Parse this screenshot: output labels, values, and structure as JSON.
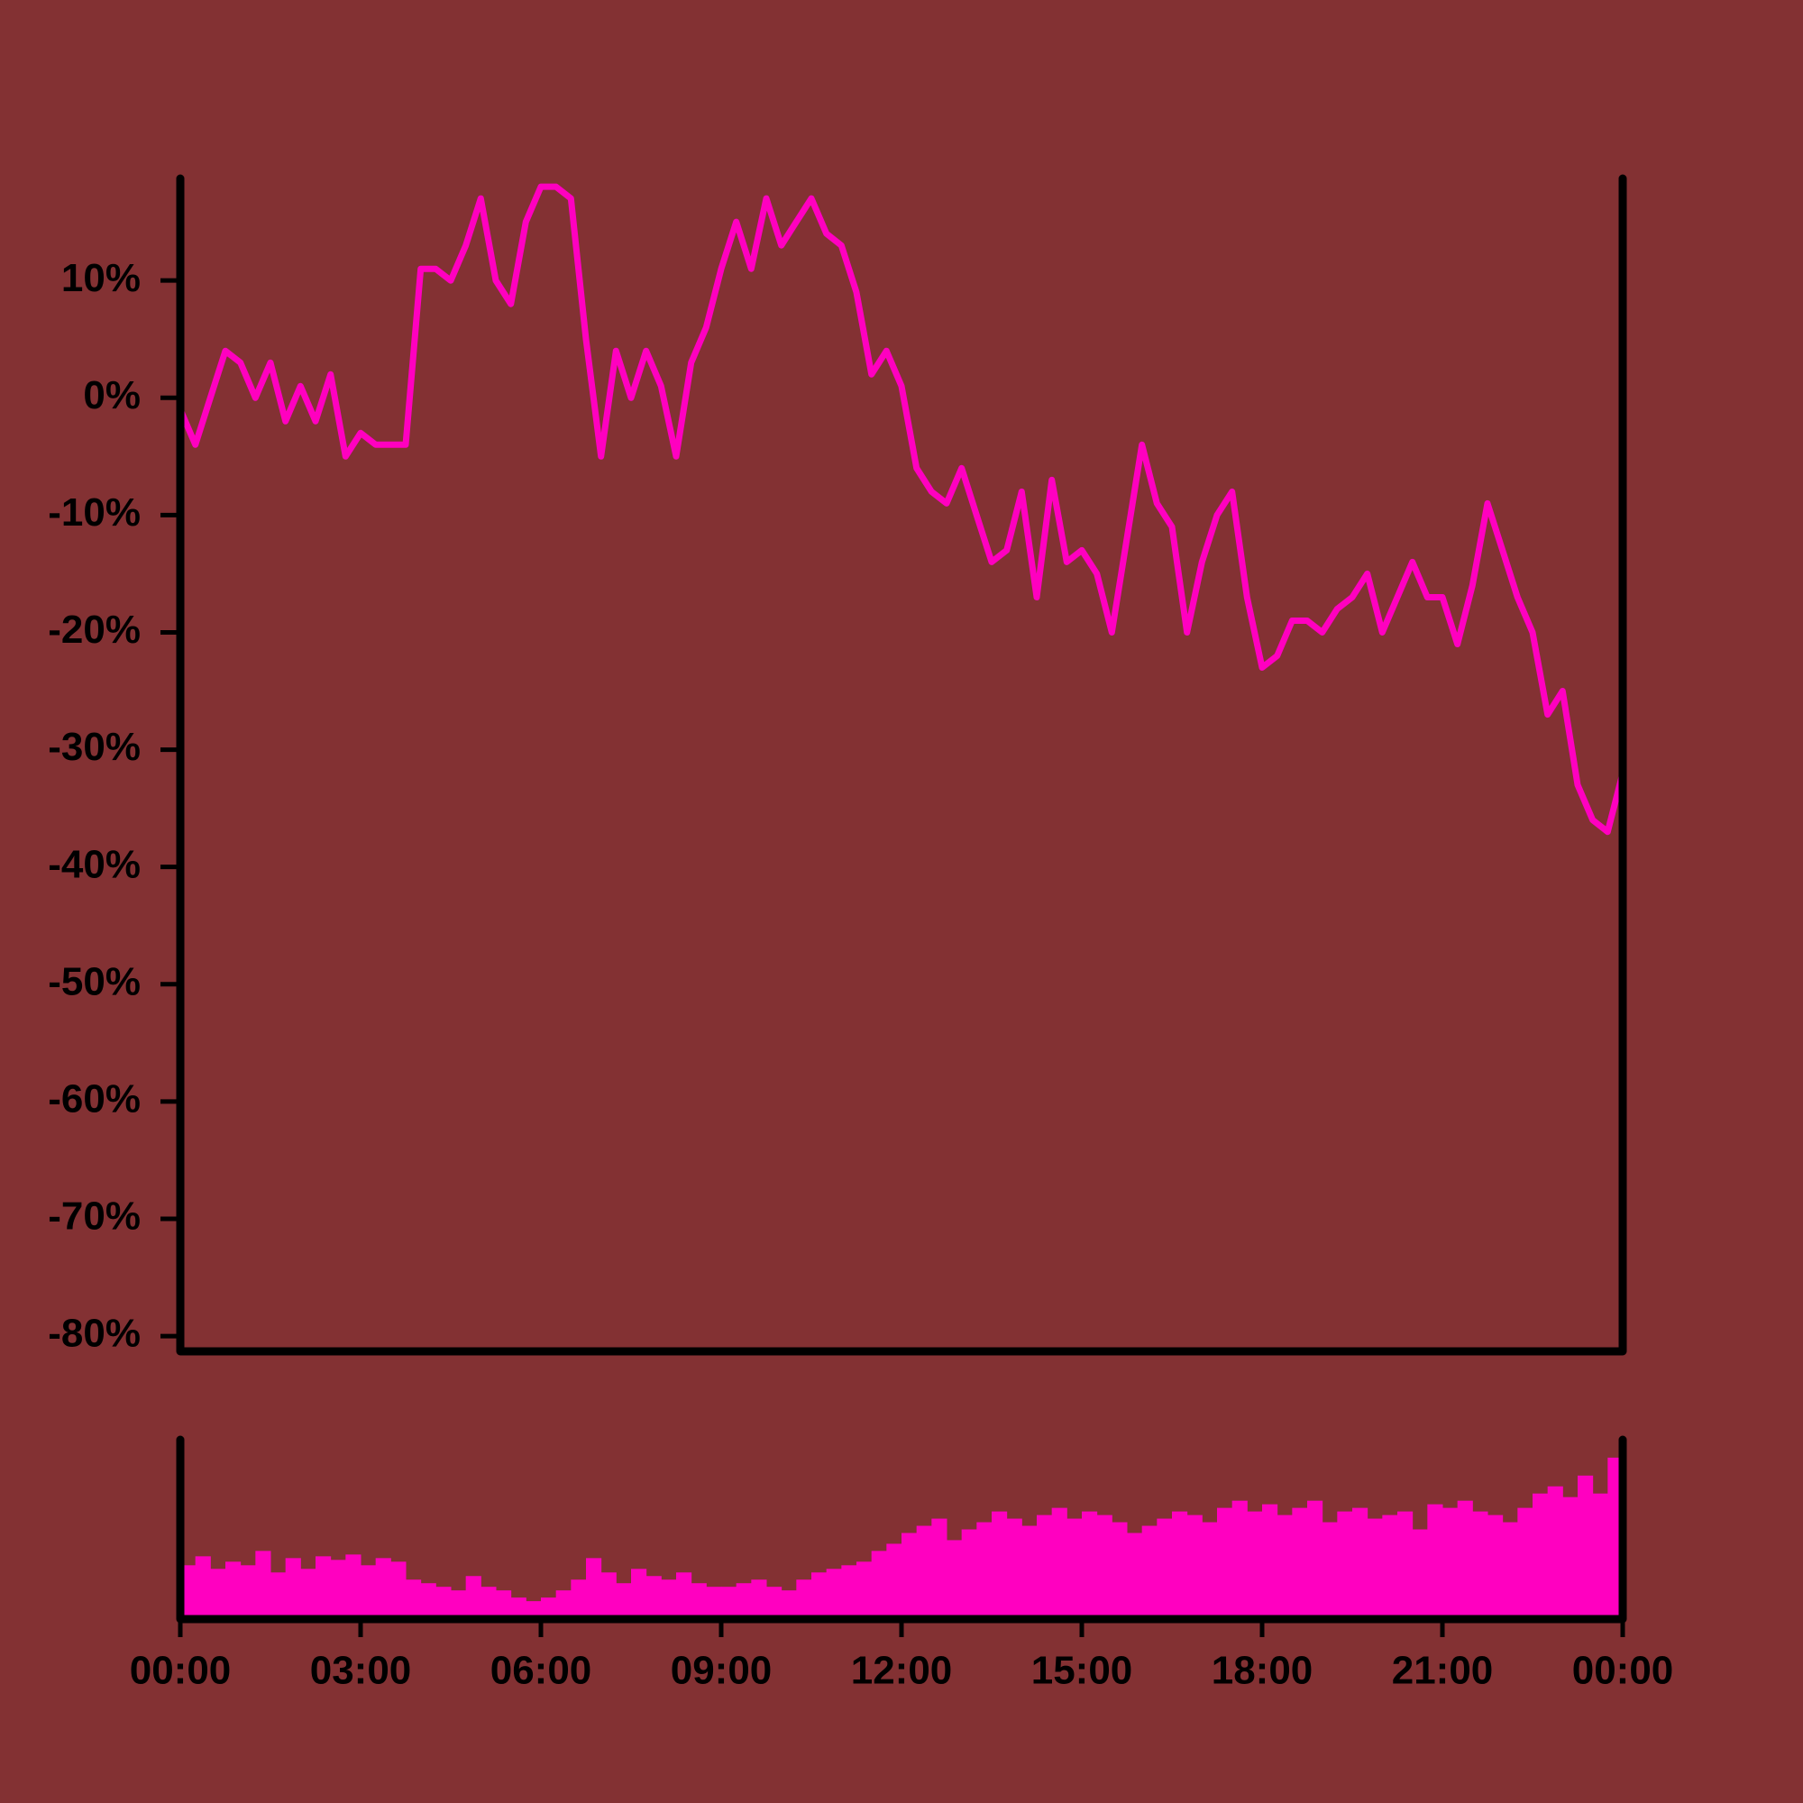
{
  "chart_data": [
    {
      "type": "line",
      "color": "#ff00c0",
      "x": [
        0,
        0.25,
        0.5,
        0.75,
        1,
        1.25,
        1.5,
        1.75,
        2,
        2.25,
        2.5,
        2.75,
        3,
        3.25,
        3.5,
        3.75,
        4,
        4.25,
        4.5,
        4.75,
        5,
        5.25,
        5.5,
        5.75,
        6,
        6.25,
        6.5,
        6.75,
        7,
        7.25,
        7.5,
        7.75,
        8,
        8.25,
        8.5,
        8.75,
        9,
        9.25,
        9.5,
        9.75,
        10,
        10.25,
        10.5,
        10.75,
        11,
        11.25,
        11.5,
        11.75,
        12,
        12.25,
        12.5,
        12.75,
        13,
        13.25,
        13.5,
        13.75,
        14,
        14.25,
        14.5,
        14.75,
        15,
        15.25,
        15.5,
        15.75,
        16,
        16.25,
        16.5,
        16.75,
        17,
        17.25,
        17.5,
        17.75,
        18,
        18.25,
        18.5,
        18.75,
        19,
        19.25,
        19.5,
        19.75,
        20,
        20.25,
        20.5,
        20.75,
        21,
        21.25,
        21.5,
        21.75,
        22,
        22.25,
        22.5,
        22.75,
        23,
        23.25,
        23.5,
        23.75,
        24
      ],
      "values": [
        -1,
        -4,
        0,
        4,
        3,
        0,
        3,
        -2,
        1,
        -2,
        2,
        -5,
        -3,
        -4,
        -4,
        -4,
        11,
        11,
        10,
        13,
        17,
        10,
        8,
        15,
        18,
        18,
        17,
        5,
        -5,
        4,
        0,
        4,
        1,
        -5,
        3,
        6,
        11,
        15,
        11,
        17,
        13,
        15,
        17,
        14,
        13,
        9,
        2,
        4,
        1,
        -6,
        -8,
        -9,
        -6,
        -10,
        -14,
        -13,
        -8,
        -17,
        -7,
        -14,
        -13,
        -15,
        -20,
        -12,
        -4,
        -9,
        -11,
        -20,
        -14,
        -10,
        -8,
        -17,
        -23,
        -22,
        -19,
        -19,
        -20,
        -18,
        -17,
        -15,
        -20,
        -17,
        -14,
        -17,
        -17,
        -21,
        -16,
        -9,
        -13,
        -17,
        -20,
        -27,
        -25,
        -33,
        -36,
        -37,
        -32
      ],
      "xlim": [
        0,
        24
      ],
      "ylim": [
        -81.3,
        18.7
      ],
      "yticks": [
        {
          "value": 10,
          "label": "10%"
        },
        {
          "value": 0,
          "label": "0%"
        },
        {
          "value": -10,
          "label": "-10%"
        },
        {
          "value": -20,
          "label": "-20%"
        },
        {
          "value": -30,
          "label": "-30%"
        },
        {
          "value": -40,
          "label": "-40%"
        },
        {
          "value": -50,
          "label": "-50%"
        },
        {
          "value": -60,
          "label": "-60%"
        },
        {
          "value": -70,
          "label": "-70%"
        },
        {
          "value": -80,
          "label": "-80%"
        }
      ]
    },
    {
      "type": "bar",
      "color": "#ff00c0",
      "values": [
        30,
        35,
        28,
        32,
        30,
        38,
        26,
        34,
        28,
        35,
        33,
        36,
        30,
        34,
        32,
        22,
        20,
        18,
        16,
        24,
        18,
        16,
        12,
        10,
        12,
        16,
        22,
        34,
        26,
        20,
        28,
        24,
        22,
        26,
        20,
        18,
        18,
        20,
        22,
        18,
        16,
        22,
        26,
        28,
        30,
        32,
        38,
        42,
        48,
        52,
        56,
        44,
        50,
        54,
        60,
        56,
        52,
        58,
        62,
        56,
        60,
        58,
        54,
        48,
        52,
        56,
        60,
        58,
        54,
        62,
        66,
        60,
        64,
        58,
        62,
        66,
        54,
        60,
        62,
        56,
        58,
        60,
        50,
        64,
        62,
        66,
        60,
        58,
        54,
        62,
        70,
        74,
        68,
        80,
        70,
        90
      ],
      "xlim": [
        0,
        24
      ],
      "ylim": [
        0,
        100
      ],
      "xticks": [
        {
          "value": 0,
          "label": "00:00"
        },
        {
          "value": 3,
          "label": "03:00"
        },
        {
          "value": 6,
          "label": "06:00"
        },
        {
          "value": 9,
          "label": "09:00"
        },
        {
          "value": 12,
          "label": "12:00"
        },
        {
          "value": 15,
          "label": "15:00"
        },
        {
          "value": 18,
          "label": "18:00"
        },
        {
          "value": 21,
          "label": "21:00"
        },
        {
          "value": 24,
          "label": "00:00"
        }
      ]
    }
  ]
}
